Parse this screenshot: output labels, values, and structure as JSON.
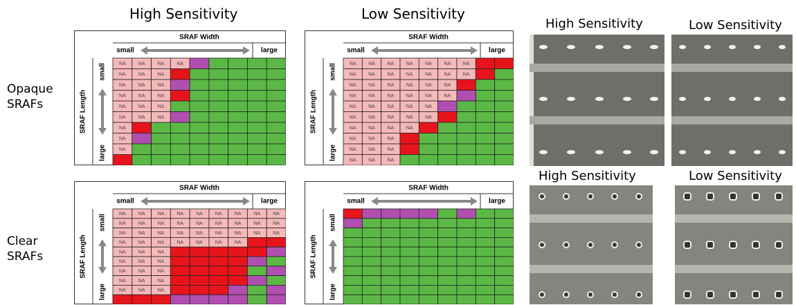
{
  "grid_titles": [
    "High Sensitivity",
    "Low Sensitivity"
  ],
  "row_labels": [
    "Opaque SRAFs",
    "Clear SRAFs"
  ],
  "photo_labels": [
    "High Sensitivity",
    "Low Sensitivity",
    "High Sensitivity",
    "Low Sensitivity"
  ],
  "tables": [
    {
      "width_title": "SRAF Width",
      "width_small": "small",
      "width_large": "large",
      "length_title": "SRAF Length",
      "length_small": "small",
      "length_large": "large",
      "cells": [
        [
          "NA",
          "NA",
          "NA",
          "NA",
          "#b04fb0",
          "#5bb846",
          "#5bb846",
          "#5bb846",
          "#5bb846"
        ],
        [
          "NA",
          "NA",
          "NA",
          "#e8141c",
          "#5bb846",
          "#5bb846",
          "#5bb846",
          "#5bb846",
          "#5bb846"
        ],
        [
          "NA",
          "NA",
          "NA",
          "#b04fb0",
          "#5bb846",
          "#5bb846",
          "#5bb846",
          "#5bb846",
          "#5bb846"
        ],
        [
          "NA",
          "NA",
          "NA",
          "#e8141c",
          "#5bb846",
          "#5bb846",
          "#5bb846",
          "#5bb846",
          "#5bb846"
        ],
        [
          "NA",
          "NA",
          "NA",
          "#5bb846",
          "#5bb846",
          "#5bb846",
          "#5bb846",
          "#5bb846",
          "#5bb846"
        ],
        [
          "NA",
          "NA",
          "NA",
          "#b04fb0",
          "#5bb846",
          "#5bb846",
          "#5bb846",
          "#5bb846",
          "#5bb846"
        ],
        [
          "NA",
          "#e8141c",
          "#5bb846",
          "#5bb846",
          "#5bb846",
          "#5bb846",
          "#5bb846",
          "#5bb846",
          "#5bb846"
        ],
        [
          "NA",
          "#b04fb0",
          "#5bb846",
          "#5bb846",
          "#5bb846",
          "#5bb846",
          "#5bb846",
          "#5bb846",
          "#5bb846"
        ],
        [
          "NA",
          "#5bb846",
          "#5bb846",
          "#5bb846",
          "#5bb846",
          "#5bb846",
          "#5bb846",
          "#5bb846",
          "#5bb846"
        ],
        [
          "#e8141c",
          "#5bb846",
          "#5bb846",
          "#5bb846",
          "#5bb846",
          "#5bb846",
          "#5bb846",
          "#5bb846",
          "#5bb846"
        ]
      ]
    },
    {
      "width_title": "SRAF Width",
      "width_small": "small",
      "width_large": "large",
      "length_title": "SRAF Length",
      "length_small": "small",
      "length_large": "large",
      "cells": [
        [
          "NA",
          "NA",
          "NA",
          "NA",
          "NA",
          "NA",
          "NA",
          "#e8141c",
          "#e8141c"
        ],
        [
          "NA",
          "NA",
          "NA",
          "NA",
          "NA",
          "NA",
          "NA",
          "#e8141c",
          "#5bb846"
        ],
        [
          "NA",
          "NA",
          "NA",
          "NA",
          "NA",
          "NA",
          "#e8141c",
          "#5bb846",
          "#5bb846"
        ],
        [
          "NA",
          "NA",
          "NA",
          "NA",
          "NA",
          "NA",
          "#b04fb0",
          "#5bb846",
          "#5bb846"
        ],
        [
          "NA",
          "NA",
          "NA",
          "NA",
          "NA",
          "#b04fb0",
          "#5bb846",
          "#5bb846",
          "#5bb846"
        ],
        [
          "NA",
          "NA",
          "NA",
          "NA",
          "NA",
          "#e8141c",
          "#5bb846",
          "#5bb846",
          "#5bb846"
        ],
        [
          "NA",
          "NA",
          "NA",
          "NA",
          "#e8141c",
          "#5bb846",
          "#5bb846",
          "#5bb846",
          "#5bb846"
        ],
        [
          "NA",
          "NA",
          "NA",
          "#e8141c",
          "#5bb846",
          "#5bb846",
          "#5bb846",
          "#5bb846",
          "#5bb846"
        ],
        [
          "NA",
          "NA",
          "NA",
          "#e8141c",
          "#5bb846",
          "#5bb846",
          "#5bb846",
          "#5bb846",
          "#5bb846"
        ],
        [
          "NA",
          "NA",
          "NA",
          "#5bb846",
          "#5bb846",
          "#5bb846",
          "#5bb846",
          "#5bb846",
          "#5bb846"
        ]
      ]
    },
    {
      "width_title": "SRAF Width",
      "width_small": "small",
      "width_large": "large",
      "length_title": "SRAF Length",
      "length_small": "small",
      "length_large": "large",
      "cells": [
        [
          "NA",
          "NA",
          "NA",
          "NA",
          "NA",
          "NA",
          "NA",
          "NA",
          "NA"
        ],
        [
          "NA",
          "NA",
          "NA",
          "NA",
          "NA",
          "NA",
          "NA",
          "NA",
          "NA"
        ],
        [
          "NA",
          "NA",
          "NA",
          "NA",
          "NA",
          "NA",
          "NA",
          "NA",
          "NA"
        ],
        [
          "NA",
          "NA",
          "NA",
          "NA",
          "NA",
          "NA",
          "NA",
          "#e8141c",
          "#e8141c"
        ],
        [
          "NA",
          "NA",
          "NA",
          "#e8141c",
          "#e8141c",
          "#e8141c",
          "#e8141c",
          "#e8141c",
          "#b04fb0"
        ],
        [
          "NA",
          "NA",
          "NA",
          "#e8141c",
          "#e8141c",
          "#e8141c",
          "#e8141c",
          "#b04fb0",
          "#5bb846"
        ],
        [
          "NA",
          "NA",
          "NA",
          "#e8141c",
          "#e8141c",
          "#e8141c",
          "#e8141c",
          "#5bb846",
          "#b04fb0"
        ],
        [
          "NA",
          "NA",
          "NA",
          "#e8141c",
          "#e8141c",
          "#e8141c",
          "#e8141c",
          "#b04fb0",
          "#5bb846"
        ],
        [
          "NA",
          "NA",
          "NA",
          "#e8141c",
          "#e8141c",
          "#e8141c",
          "#b04fb0",
          "#5bb846",
          "#b04fb0"
        ],
        [
          "#e8141c",
          "#e8141c",
          "#e8141c",
          "#b04fb0",
          "#b04fb0",
          "#b04fb0",
          "#b04fb0",
          "#5bb846",
          "#b04fb0"
        ]
      ]
    },
    {
      "width_title": "SRAF Width",
      "width_small": "small",
      "width_large": "large",
      "length_title": "SRAF Length",
      "length_small": "small",
      "length_large": "large",
      "cells": [
        [
          "#e8141c",
          "#b04fb0",
          "#b04fb0",
          "#b04fb0",
          "#b04fb0",
          "#5bb846",
          "#b04fb0",
          "#5bb846",
          "#5bb846"
        ],
        [
          "#b04fb0",
          "#5bb846",
          "#5bb846",
          "#5bb846",
          "#5bb846",
          "#5bb846",
          "#5bb846",
          "#5bb846",
          "#5bb846"
        ],
        [
          "#5bb846",
          "#5bb846",
          "#5bb846",
          "#5bb846",
          "#5bb846",
          "#5bb846",
          "#5bb846",
          "#5bb846",
          "#5bb846"
        ],
        [
          "#5bb846",
          "#5bb846",
          "#5bb846",
          "#5bb846",
          "#5bb846",
          "#5bb846",
          "#5bb846",
          "#5bb846",
          "#5bb846"
        ],
        [
          "#5bb846",
          "#5bb846",
          "#5bb846",
          "#5bb846",
          "#5bb846",
          "#5bb846",
          "#5bb846",
          "#5bb846",
          "#5bb846"
        ],
        [
          "#5bb846",
          "#5bb846",
          "#5bb846",
          "#5bb846",
          "#5bb846",
          "#5bb846",
          "#5bb846",
          "#5bb846",
          "#5bb846"
        ],
        [
          "#5bb846",
          "#5bb846",
          "#5bb846",
          "#5bb846",
          "#5bb846",
          "#5bb846",
          "#5bb846",
          "#5bb846",
          "#5bb846"
        ],
        [
          "#5bb846",
          "#5bb846",
          "#5bb846",
          "#5bb846",
          "#5bb846",
          "#5bb846",
          "#5bb846",
          "#5bb846",
          "#5bb846"
        ],
        [
          "#5bb846",
          "#5bb846",
          "#5bb846",
          "#5bb846",
          "#5bb846",
          "#5bb846",
          "#5bb846",
          "#5bb846",
          "#5bb846"
        ],
        [
          "#5bb846",
          "#5bb846",
          "#5bb846",
          "#5bb846",
          "#5bb846",
          "#5bb846",
          "#5bb846",
          "#5bb846",
          "#5bb846"
        ]
      ]
    }
  ]
}
